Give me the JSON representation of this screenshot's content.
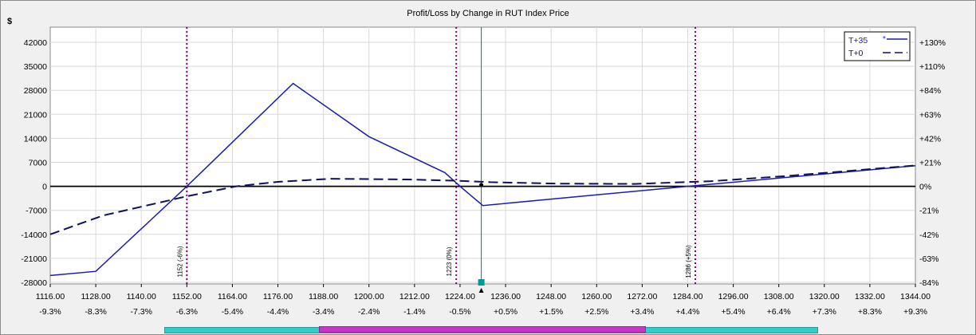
{
  "chart_data": {
    "type": "line",
    "title": "Profit/Loss by Change in RUT Index Price",
    "ylabel": "$",
    "xlim": [
      1116,
      1344
    ],
    "ylim": [
      -28000,
      45000
    ],
    "x_ticks": [
      1116.0,
      1128.0,
      1140.0,
      1152.0,
      1164.0,
      1176.0,
      1188.0,
      1200.0,
      1212.0,
      1224.0,
      1236.0,
      1248.0,
      1260.0,
      1272.0,
      1284.0,
      1296.0,
      1308.0,
      1320.0,
      1332.0,
      1344.0
    ],
    "x_tick_labels": [
      "1116.00",
      "1128.00",
      "1140.00",
      "1152.00",
      "1164.00",
      "1176.00",
      "1188.00",
      "1200.00",
      "1212.00",
      "1224.00",
      "1236.00",
      "1248.00",
      "1260.00",
      "1272.00",
      "1284.00",
      "1296.00",
      "1308.00",
      "1320.00",
      "1332.00",
      "1344.00"
    ],
    "x_pct_labels": [
      "-9.3%",
      "-8.3%",
      "-7.3%",
      "-6.3%",
      "-5.4%",
      "-4.4%",
      "-3.4%",
      "-2.4%",
      "-1.4%",
      "-0.5%",
      "+0.5%",
      "+1.5%",
      "+2.5%",
      "+3.4%",
      "+4.4%",
      "+5.4%",
      "+6.4%",
      "+7.3%",
      "+8.3%",
      "+9.3%"
    ],
    "y_ticks": [
      42000,
      35000,
      28000,
      21000,
      14000,
      7000,
      0,
      -7000,
      -14000,
      -21000,
      -28000
    ],
    "y_tick_labels": [
      "42000",
      "35000",
      "28000",
      "21000",
      "14000",
      "7000",
      "0",
      "-7000",
      "-14000",
      "-21000",
      "-28000"
    ],
    "y2_tick_labels": [
      "+130%",
      "+110%",
      "+84%",
      "+63%",
      "+42%",
      "+21%",
      "0%",
      "-21%",
      "-42%",
      "-63%",
      "-84%"
    ],
    "grid": true,
    "legend_position": "top-right",
    "series": [
      {
        "name": "T+35",
        "style": "solid",
        "color": "#1c1cb4",
        "x": [
          1116,
          1128,
          1152,
          1180,
          1200,
          1220,
          1224,
          1230,
          1284,
          1344
        ],
        "y": [
          -26000,
          -24800,
          0,
          30000,
          14500,
          4000,
          0,
          -5600,
          0,
          6000
        ]
      },
      {
        "name": "T+0",
        "style": "dashed",
        "color": "#101060",
        "x": [
          1116,
          1130,
          1152,
          1165,
          1176,
          1190,
          1210,
          1224,
          1232,
          1250,
          1270,
          1290,
          1310,
          1344
        ],
        "y": [
          -14000,
          -8500,
          -2900,
          0,
          1300,
          2200,
          2000,
          1600,
          1200,
          800,
          700,
          1500,
          3000,
          6100
        ]
      }
    ],
    "vertical_markers": [
      {
        "x": 1152,
        "label": "1152 (-6%)"
      },
      {
        "x": 1223,
        "label": "1223 (0%)"
      },
      {
        "x": 1286,
        "label": "1286 (+5%)"
      }
    ],
    "current_price_line": {
      "x": 1229.6,
      "dot_y": 400
    },
    "colors": {
      "marker": "#800080",
      "price_line": "#007f7f",
      "grid": "#d8d8d8",
      "zero_line": "#000000"
    }
  },
  "scrollbar": {
    "track_color": "#33cccc",
    "thumb_color": "#cc33cc"
  }
}
